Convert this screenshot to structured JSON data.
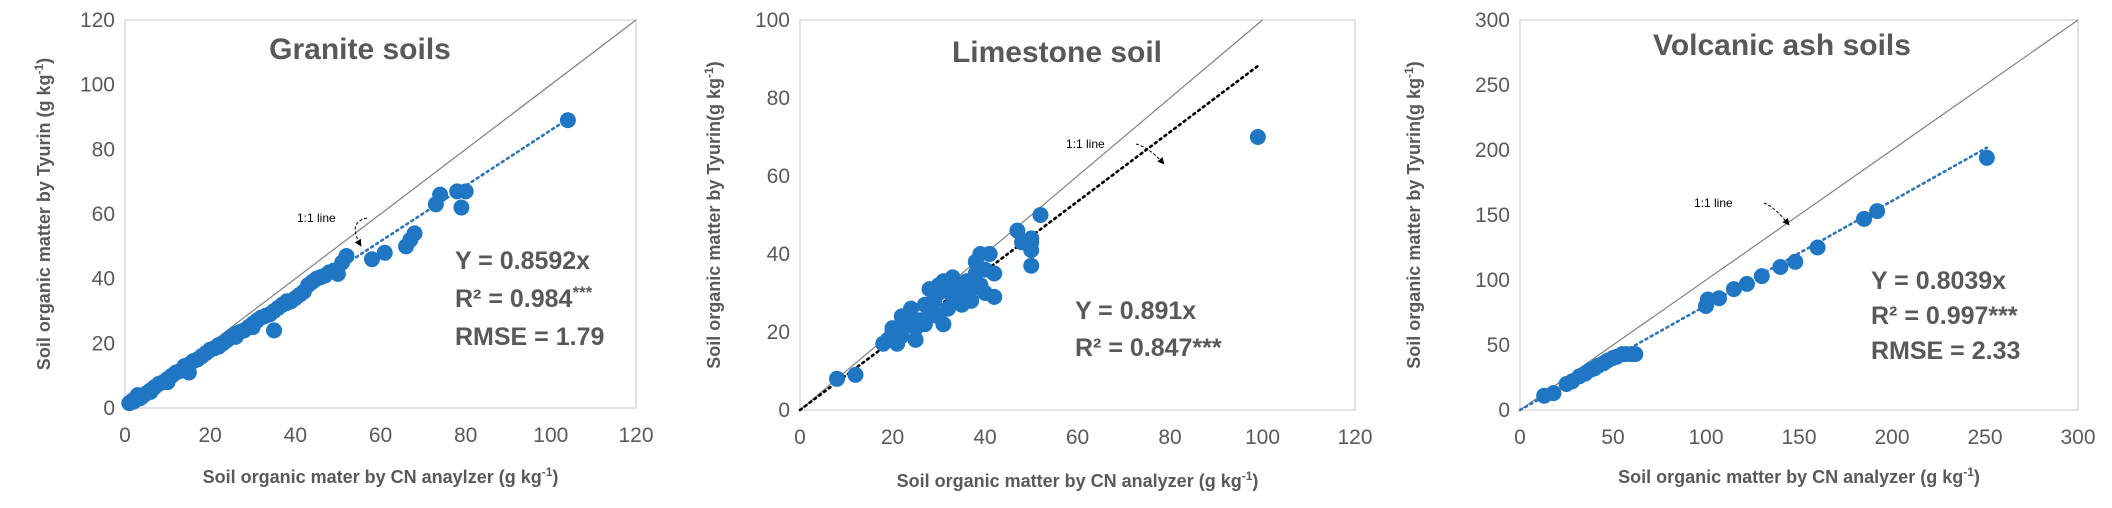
{
  "colors": {
    "point": "#1f77c4",
    "trend_blue": "#2e75b6",
    "trend_black": "#000000",
    "identity": "#7f7f7f",
    "text": "#595959",
    "frame": "#d9d9d9"
  },
  "chart_data": [
    {
      "type": "scatter",
      "title": "Granite soils",
      "xlabel": "Soil organic mater by CN anaylzer (g kg",
      "xlabel_sup": "-1",
      "xlabel_end": ")",
      "ylabel": "Soil organic matter by Tyurin (g kg",
      "ylabel_sup": "-1",
      "ylabel_end": ")",
      "xlim": [
        0,
        120
      ],
      "ylim": [
        0,
        120
      ],
      "xticks": [
        "0",
        "20",
        "40",
        "60",
        "80",
        "100",
        "120"
      ],
      "yticks": [
        "0",
        "20",
        "40",
        "60",
        "80",
        "100",
        "120"
      ],
      "slope": 0.8592,
      "trend_color": "blue",
      "identity_label": "1:1  line",
      "stats": [
        "Y = 0.8592x",
        "R² = 0.984",
        "RMSE = 1.79"
      ],
      "stats_sup": [
        "",
        "***",
        ""
      ],
      "x": [
        1,
        1.5,
        2,
        2.5,
        3,
        3.5,
        4,
        5,
        6,
        7,
        8,
        9,
        10,
        11,
        12,
        13,
        14,
        15,
        16,
        17,
        18,
        19,
        20,
        21,
        22,
        23,
        24,
        25,
        26,
        27,
        28,
        29,
        30,
        31,
        32,
        33,
        34,
        35,
        36,
        37,
        38,
        39,
        40,
        41,
        42,
        43,
        44,
        45,
        46,
        47,
        48,
        49,
        50,
        51,
        52,
        2,
        3,
        6,
        10,
        14,
        18,
        22,
        26,
        30,
        34,
        38,
        15,
        20,
        25,
        30,
        35,
        58,
        61,
        66,
        67,
        68,
        73,
        74,
        78,
        79,
        80,
        104
      ],
      "y": [
        1.5,
        2,
        2,
        2.5,
        3,
        3,
        3.5,
        4.5,
        5.5,
        6.5,
        7.5,
        8,
        9,
        10,
        11,
        11.5,
        12,
        13.5,
        14.5,
        15,
        16,
        17,
        18,
        18.5,
        19.5,
        20,
        21,
        22,
        23,
        23.5,
        24,
        25,
        26,
        27,
        28,
        28.5,
        29,
        30,
        31,
        32,
        32.5,
        33,
        34,
        35,
        36,
        38,
        39,
        40,
        40.5,
        41,
        42,
        42.5,
        41.5,
        45,
        47,
        2.5,
        4,
        5,
        8,
        13,
        16,
        19,
        22,
        26,
        29,
        33,
        11,
        18,
        22,
        25,
        24,
        46,
        48,
        50,
        52,
        54,
        63,
        66,
        67,
        62,
        67,
        89
      ]
    },
    {
      "type": "scatter",
      "title": "Limestone soil",
      "xlabel": "Soil organic matter by CN analyzer (g kg",
      "xlabel_sup": "-1",
      "xlabel_end": ")",
      "ylabel": "Soil organic matter by Tyurin(g kg",
      "ylabel_sup": "-1",
      "ylabel_end": ")",
      "xlim": [
        0,
        120
      ],
      "ylim": [
        0,
        100
      ],
      "xticks": [
        "0",
        "20",
        "40",
        "60",
        "80",
        "100",
        "120"
      ],
      "yticks": [
        "0",
        "20",
        "40",
        "60",
        "80",
        "100"
      ],
      "slope": 0.891,
      "trend_color": "black",
      "trend_xmax": 99,
      "identity_label": "1:1  line",
      "stats": [
        "Y = 0.891x",
        "R² = 0.847***"
      ],
      "stats_sup": [
        "",
        ""
      ],
      "x": [
        8,
        12,
        18,
        19,
        20,
        20,
        21,
        22,
        22,
        23,
        24,
        24,
        25,
        25,
        26,
        27,
        27,
        28,
        28,
        29,
        29,
        30,
        30,
        30,
        31,
        31,
        32,
        32,
        33,
        33,
        34,
        35,
        35,
        36,
        37,
        37,
        38,
        38,
        39,
        39,
        40,
        40,
        41,
        42,
        42,
        47,
        48,
        50,
        50,
        50,
        50,
        52,
        99
      ],
      "y": [
        8,
        9,
        17,
        18,
        20,
        21,
        17,
        19,
        24,
        22,
        23,
        26,
        18,
        21,
        23,
        22,
        27,
        24,
        31,
        25,
        28,
        30,
        32,
        24,
        33,
        22,
        31,
        26,
        34,
        29,
        32,
        30,
        27,
        33,
        28,
        31,
        35,
        38,
        40,
        32,
        36,
        30,
        40,
        35,
        29,
        46,
        43,
        44,
        43,
        41,
        37,
        50,
        70
      ]
    },
    {
      "type": "scatter",
      "title": "Volcanic ash soils",
      "xlabel": "Soil organic matter by CN analyzer (g kg",
      "xlabel_sup": "-1",
      "xlabel_end": ")",
      "ylabel": "Soil organic matter by Tyurin(g kg",
      "ylabel_sup": "-1",
      "ylabel_end": ")",
      "xlim": [
        0,
        300
      ],
      "ylim": [
        0,
        300
      ],
      "xticks": [
        "0",
        "50",
        "100",
        "150",
        "200",
        "250",
        "300"
      ],
      "yticks": [
        "0",
        "50",
        "100",
        "150",
        "200",
        "250",
        "300"
      ],
      "slope": 0.8039,
      "trend_color": "blue",
      "identity_label": "1:1  line",
      "stats": [
        "Y = 0.8039x",
        "R² = 0.997***",
        "RMSE = 2.33"
      ],
      "stats_sup": [
        "",
        "",
        ""
      ],
      "x": [
        13,
        18,
        25,
        28,
        32,
        35,
        38,
        40,
        42,
        45,
        47,
        50,
        52,
        55,
        57,
        60,
        62,
        100,
        101,
        107,
        115,
        122,
        130,
        140,
        148,
        160,
        185,
        192,
        251
      ],
      "y": [
        11,
        13,
        20,
        22,
        26,
        28,
        31,
        32,
        34,
        36,
        38,
        40,
        41,
        43,
        43,
        43,
        43,
        80,
        85,
        86,
        93,
        97,
        103,
        110,
        114,
        125,
        147,
        153,
        194
      ]
    }
  ]
}
